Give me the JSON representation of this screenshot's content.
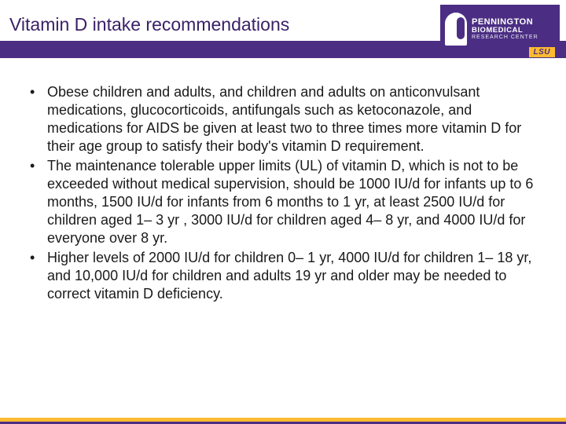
{
  "header": {
    "title": "Vitamin D intake recommendations",
    "logo": {
      "line1": "PENNINGTON",
      "line2": "BIOMEDICAL",
      "line3": "RESEARCH CENTER",
      "badge": "LSU"
    }
  },
  "colors": {
    "purple": "#4b2e83",
    "gold": "#fdbb30",
    "title_text": "#3a2168",
    "body_text": "#1a1a1a",
    "background": "#ffffff"
  },
  "typography": {
    "title_fontsize": 23,
    "body_fontsize": 18,
    "body_lineheight": 1.28
  },
  "bullets": [
    "Obese children and adults, and children and adults on anticonvulsant medications, glucocorticoids, antifungals such as ketoconazole, and medications for AIDS be given at least two to three times more vitamin D for their age group to satisfy their body's vitamin D requirement.",
    "The maintenance tolerable upper limits (UL) of vitamin D, which is not to be exceeded without medical supervision, should be 1000 IU/d for infants up to 6 months, 1500 IU/d for infants from 6 months to 1 yr, at least 2500 IU/d for children aged 1– 3 yr , 3000 IU/d for children aged 4– 8 yr, and 4000 IU/d for everyone over 8 yr.",
    "Higher levels of 2000 IU/d for children 0– 1 yr, 4000 IU/d for children 1– 18 yr, and 10,000 IU/d for children and adults 19 yr and older may be needed to correct vitamin D deficiency."
  ]
}
